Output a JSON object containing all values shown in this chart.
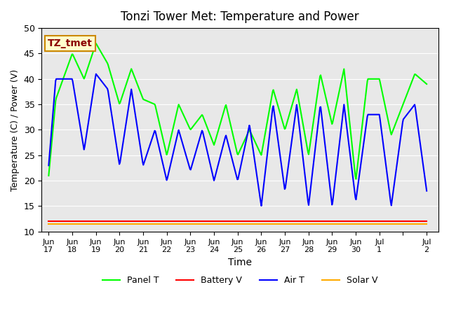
{
  "title": "Tonzi Tower Met: Temperature and Power",
  "xlabel": "Time",
  "ylabel": "Temperature (C) / Power (V)",
  "ylim": [
    10,
    50
  ],
  "annotation": "TZ_tmet",
  "bg_color": "#e8e8e8",
  "fig_bg_color": "#ffffff",
  "legend": [
    "Panel T",
    "Battery V",
    "Air T",
    "Solar V"
  ],
  "colors": {
    "panel_t": "#00ff00",
    "battery_v": "#ff0000",
    "air_t": "#0000ff",
    "solar_v": "#ffaa00"
  },
  "tick_labels": [
    "Jun\n17",
    "Jun\n18",
    "Jun\n19",
    "Jun\n20",
    "Jun\n21",
    "Jun\n22",
    "Jun\n23",
    "Jun\n24",
    "Jun\n25",
    "Jun\n26",
    "Jun\n27",
    "Jun\n28",
    "Jun\n29",
    "Jun\n30",
    "Jul\n1",
    "",
    "Jul\n2"
  ],
  "tick_positions": [
    0,
    1,
    2,
    3,
    4,
    5,
    6,
    7,
    8,
    9,
    10,
    11,
    12,
    13,
    14,
    15,
    16
  ],
  "panel_t_x": [
    0,
    0.3,
    1.0,
    1.5,
    2.0,
    2.5,
    3.0,
    3.5,
    4.0,
    4.5,
    5.0,
    5.5,
    6.0,
    6.5,
    7.0,
    7.5,
    8.0,
    8.5,
    9.0,
    9.5,
    10.0,
    10.5,
    11.0,
    11.5,
    12.0,
    12.5,
    13.0,
    13.5,
    14.0,
    14.5,
    15.0,
    15.5,
    16.0
  ],
  "panel_t_y": [
    21,
    36,
    45,
    40,
    47,
    43,
    35,
    42,
    36,
    35,
    25,
    35,
    30,
    33,
    27,
    35,
    25,
    30,
    25,
    38,
    30,
    38,
    25,
    41,
    31,
    42,
    20,
    40,
    40,
    29,
    35,
    41,
    39
  ],
  "air_t_x": [
    0,
    0.3,
    1.0,
    1.5,
    2.0,
    2.5,
    3.0,
    3.5,
    4.0,
    4.5,
    5.0,
    5.5,
    6.0,
    6.5,
    7.0,
    7.5,
    8.0,
    8.5,
    9.0,
    9.5,
    10.0,
    10.5,
    11.0,
    11.5,
    12.0,
    12.5,
    13.0,
    13.5,
    14.0,
    14.5,
    15.0,
    15.5,
    16.0
  ],
  "air_t_y": [
    23,
    40,
    40,
    26,
    41,
    38,
    23,
    38,
    23,
    30,
    20,
    30,
    22,
    30,
    20,
    29,
    20,
    31,
    15,
    35,
    18,
    35,
    15,
    35,
    15,
    35,
    16,
    33,
    33,
    15,
    32,
    35,
    18
  ],
  "battery_v": 12.0,
  "solar_v": 11.5
}
